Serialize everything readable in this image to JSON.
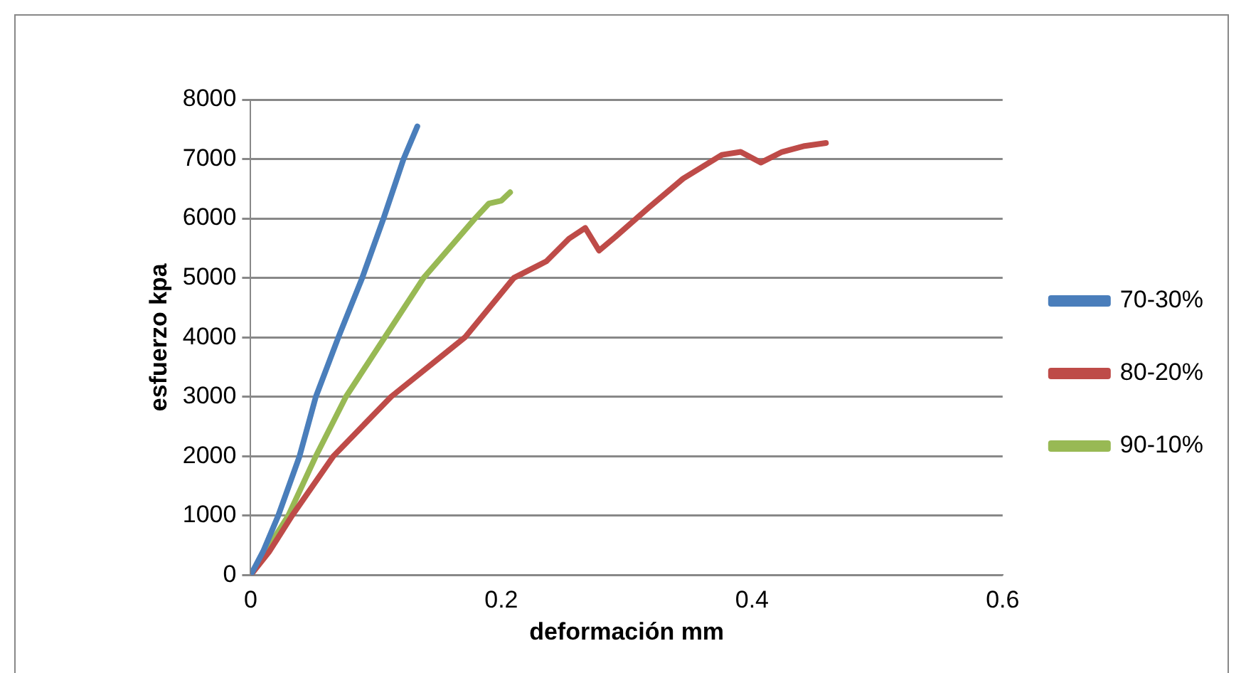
{
  "chart_data": {
    "type": "line",
    "xlabel": "deformación mm",
    "ylabel": "esfuerzo kpa",
    "xlim": [
      0,
      0.6
    ],
    "xticks": [
      0,
      0.2,
      0.4,
      0.6
    ],
    "ylim": [
      0,
      8000
    ],
    "yticks": [
      0,
      1000,
      2000,
      3000,
      4000,
      5000,
      6000,
      7000,
      8000
    ],
    "grid": "y",
    "legend": "right",
    "marker": "none",
    "line_style": "solid",
    "series": [
      {
        "name": "70-30%",
        "color": "#4a7ebb",
        "x": [
          0,
          0.01,
          0.022,
          0.039,
          0.052,
          0.07,
          0.089,
          0.106,
          0.122,
          0.133
        ],
        "values": [
          0,
          400,
          1000,
          2000,
          3000,
          4000,
          5000,
          6000,
          7000,
          7550
        ]
      },
      {
        "name": "80-20%",
        "color": "#be4b48",
        "x": [
          0,
          0.015,
          0.033,
          0.066,
          0.112,
          0.171,
          0.21,
          0.236,
          0.254,
          0.267,
          0.278,
          0.291,
          0.318,
          0.345,
          0.376,
          0.391,
          0.407,
          0.424,
          0.442,
          0.459
        ],
        "values": [
          0,
          400,
          1000,
          2000,
          3000,
          4000,
          5000,
          5280,
          5660,
          5840,
          5460,
          5690,
          6190,
          6670,
          7070,
          7120,
          6940,
          7120,
          7220,
          7270
        ]
      },
      {
        "name": "90-10%",
        "color": "#98b954",
        "x": [
          0,
          0.012,
          0.03,
          0.052,
          0.076,
          0.107,
          0.138,
          0.179,
          0.19,
          0.2,
          0.207
        ],
        "values": [
          0,
          400,
          1000,
          2000,
          3000,
          4000,
          5000,
          6000,
          6250,
          6300,
          6440
        ]
      }
    ]
  }
}
